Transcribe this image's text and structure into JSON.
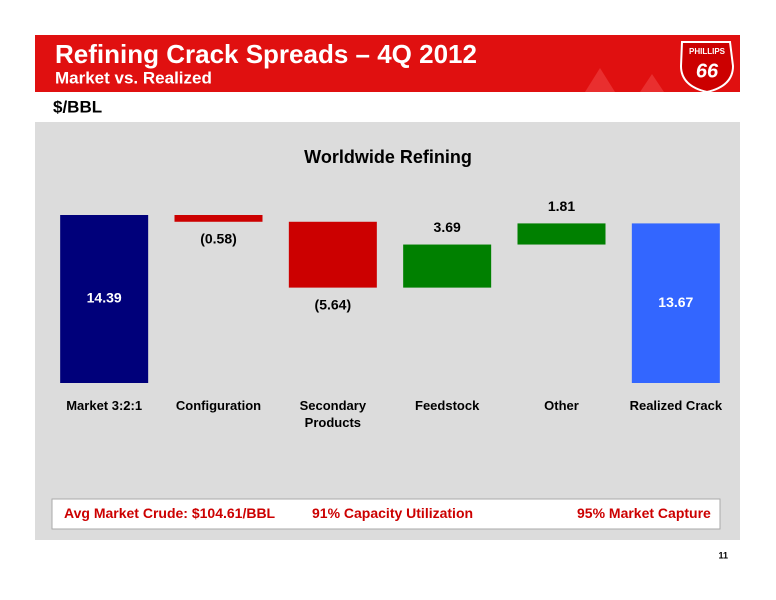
{
  "header": {
    "title": "Refining Crack Spreads – 4Q 2012",
    "subtitle": "Market vs. Realized",
    "logo_top": "PHILLIPS",
    "logo_number": "66"
  },
  "units": "$/BBL",
  "chart_data": {
    "type": "waterfall",
    "title": "Worldwide Refining",
    "categories": [
      "Market 3:2:1",
      "Configuration",
      "Secondary Products",
      "Feedstock",
      "Other",
      "Realized Crack"
    ],
    "values": [
      14.39,
      -0.58,
      -5.64,
      3.69,
      1.81,
      13.67
    ],
    "value_labels": [
      "14.39",
      "(0.58)",
      "(5.64)",
      "3.69",
      "1.81",
      "13.67"
    ],
    "totals": [
      true,
      false,
      false,
      false,
      false,
      true
    ],
    "colors": [
      "#00007a",
      "#cc0000",
      "#cc0000",
      "#008000",
      "#008000",
      "#3366ff"
    ]
  },
  "footer": {
    "items": [
      "Avg Market Crude: $104.61/BBL",
      "91% Capacity Utilization",
      "95% Market Capture"
    ]
  },
  "page_number": "11"
}
